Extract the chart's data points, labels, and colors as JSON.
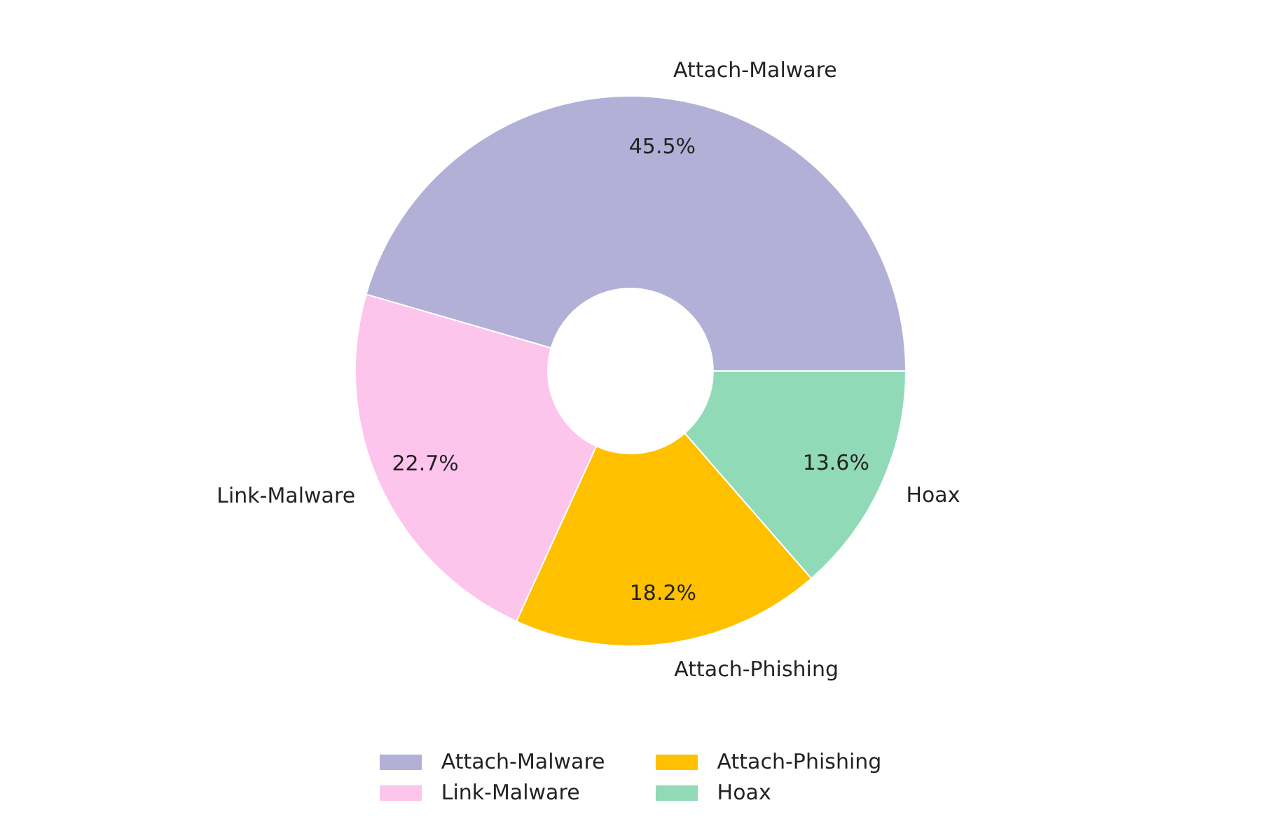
{
  "chart_data": {
    "type": "donut",
    "categories": [
      "Attach-Malware",
      "Link-Malware",
      "Attach-Phishing",
      "Hoax"
    ],
    "values": [
      45.5,
      22.7,
      18.2,
      13.6
    ],
    "colors": [
      "#b3b0d7",
      "#fdc4ec",
      "#ffc000",
      "#90dab8"
    ],
    "value_labels": [
      "45.5%",
      "22.7%",
      "18.2%",
      "13.6%"
    ],
    "legend": "bottom"
  }
}
